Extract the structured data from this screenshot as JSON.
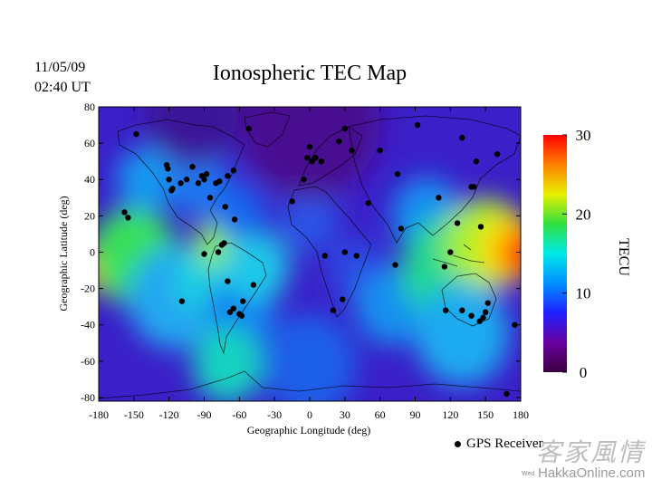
{
  "header": {
    "date": "11/05/09",
    "time": "02:40 UT",
    "title": "Ionospheric TEC Map"
  },
  "map": {
    "xlabel": "Geographic Longitude (deg)",
    "ylabel": "Geographic Latitude (deg)",
    "xticks": [
      "-180",
      "-150",
      "-120",
      "-90",
      "-60",
      "-30",
      "0",
      "30",
      "60",
      "90",
      "120",
      "150",
      "180"
    ],
    "yticks": [
      "80",
      "60",
      "40",
      "20",
      "0",
      "-20",
      "-40",
      "-60",
      "-80"
    ],
    "xlim": [
      -180,
      180
    ],
    "ylim": [
      -82,
      80
    ],
    "background_color": "#3b1fc8",
    "tec_blobs": [
      {
        "lon": -180,
        "lat": -8,
        "r": 18,
        "color": "#ff2a00"
      },
      {
        "lon": -165,
        "lat": -6,
        "r": 26,
        "color": "#ffd800"
      },
      {
        "lon": -150,
        "lat": -2,
        "r": 38,
        "color": "#39e05a"
      },
      {
        "lon": -115,
        "lat": -25,
        "r": 40,
        "color": "#22a8f0"
      },
      {
        "lon": -85,
        "lat": -14,
        "r": 30,
        "color": "#1fd0e0"
      },
      {
        "lon": -80,
        "lat": 5,
        "r": 18,
        "color": "#8cf03c"
      },
      {
        "lon": -60,
        "lat": -35,
        "r": 30,
        "color": "#1880f0"
      },
      {
        "lon": -45,
        "lat": -8,
        "r": 28,
        "color": "#1ec8e8"
      },
      {
        "lon": -70,
        "lat": -62,
        "r": 30,
        "color": "#19d2c0"
      },
      {
        "lon": -140,
        "lat": 40,
        "r": 25,
        "color": "#1498f0"
      },
      {
        "lon": -95,
        "lat": 38,
        "r": 26,
        "color": "#1a78f0"
      },
      {
        "lon": -60,
        "lat": 22,
        "r": 22,
        "color": "#1968ee"
      },
      {
        "lon": 0,
        "lat": 18,
        "r": 25,
        "color": "#2b52e6"
      },
      {
        "lon": 40,
        "lat": -10,
        "r": 25,
        "color": "#2a4ae2"
      },
      {
        "lon": 70,
        "lat": -30,
        "r": 30,
        "color": "#1890f0"
      },
      {
        "lon": 100,
        "lat": 20,
        "r": 30,
        "color": "#1890f0"
      },
      {
        "lon": 120,
        "lat": -10,
        "r": 42,
        "color": "#22d890"
      },
      {
        "lon": 150,
        "lat": 5,
        "r": 35,
        "color": "#a8f02a"
      },
      {
        "lon": 170,
        "lat": 2,
        "r": 26,
        "color": "#ffe000"
      },
      {
        "lon": 180,
        "lat": 0,
        "r": 18,
        "color": "#ff3000"
      },
      {
        "lon": 130,
        "lat": -45,
        "r": 40,
        "color": "#1aaaf0"
      },
      {
        "lon": 0,
        "lat": -62,
        "r": 40,
        "color": "#1e5ee8"
      },
      {
        "lon": 0,
        "lat": 72,
        "r": 60,
        "color": "#4a1090"
      },
      {
        "lon": -100,
        "lat": 76,
        "r": 40,
        "color": "#3a1598"
      }
    ],
    "receivers": [
      [
        -148,
        65
      ],
      [
        -122,
        48
      ],
      [
        -121,
        46
      ],
      [
        -120,
        40
      ],
      [
        -118,
        34
      ],
      [
        -117,
        35
      ],
      [
        -110,
        38
      ],
      [
        -105,
        40
      ],
      [
        -100,
        47
      ],
      [
        -95,
        38
      ],
      [
        -92,
        42
      ],
      [
        -90,
        40
      ],
      [
        -88,
        43
      ],
      [
        -85,
        30
      ],
      [
        -80,
        38
      ],
      [
        -77,
        39
      ],
      [
        -70,
        42
      ],
      [
        -65,
        45
      ],
      [
        -72,
        25
      ],
      [
        -64,
        18
      ],
      [
        -158,
        22
      ],
      [
        -155,
        19
      ],
      [
        -109,
        -27
      ],
      [
        -90,
        -1
      ],
      [
        -78,
        0
      ],
      [
        -75,
        4
      ],
      [
        -73,
        5
      ],
      [
        -70,
        -16
      ],
      [
        -68,
        -33
      ],
      [
        -65,
        -31
      ],
      [
        -60,
        -34
      ],
      [
        -58,
        -35
      ],
      [
        -57,
        -27
      ],
      [
        -48,
        -18
      ],
      [
        -52,
        68
      ],
      [
        -15,
        28
      ],
      [
        -5,
        40
      ],
      [
        -2,
        52
      ],
      [
        2,
        50
      ],
      [
        5,
        52
      ],
      [
        10,
        50
      ],
      [
        0,
        58
      ],
      [
        30,
        68
      ],
      [
        25,
        61
      ],
      [
        36,
        56
      ],
      [
        60,
        56
      ],
      [
        75,
        43
      ],
      [
        92,
        70
      ],
      [
        130,
        63
      ],
      [
        142,
        50
      ],
      [
        20,
        -32
      ],
      [
        28,
        -26
      ],
      [
        40,
        -2
      ],
      [
        30,
        0
      ],
      [
        13,
        -2
      ],
      [
        78,
        13
      ],
      [
        73,
        -7
      ],
      [
        50,
        27
      ],
      [
        115,
        -8
      ],
      [
        120,
        0
      ],
      [
        110,
        30
      ],
      [
        126,
        16
      ],
      [
        140,
        36
      ],
      [
        138,
        36
      ],
      [
        146,
        14
      ],
      [
        150,
        -33
      ],
      [
        148,
        -36
      ],
      [
        152,
        -28
      ],
      [
        145,
        -38
      ],
      [
        130,
        -32
      ],
      [
        116,
        -32
      ],
      [
        138,
        -35
      ],
      [
        175,
        -40
      ],
      [
        160,
        54
      ],
      [
        168,
        -78
      ]
    ]
  },
  "colorbar": {
    "ticks": [
      "30",
      "20",
      "10",
      "0"
    ],
    "label": "TECU",
    "min": 0,
    "max": 30,
    "stops": [
      "#3a0040",
      "#6a00a0",
      "#2020ff",
      "#0090ff",
      "#00e8e8",
      "#30e040",
      "#e8f000",
      "#ff8000",
      "#ff0000"
    ]
  },
  "legend": {
    "label": "GPS Receiver"
  },
  "watermark": {
    "text": "HakkaOnline.com",
    "logo_text": "客家風情",
    "small_text": "Wed"
  }
}
